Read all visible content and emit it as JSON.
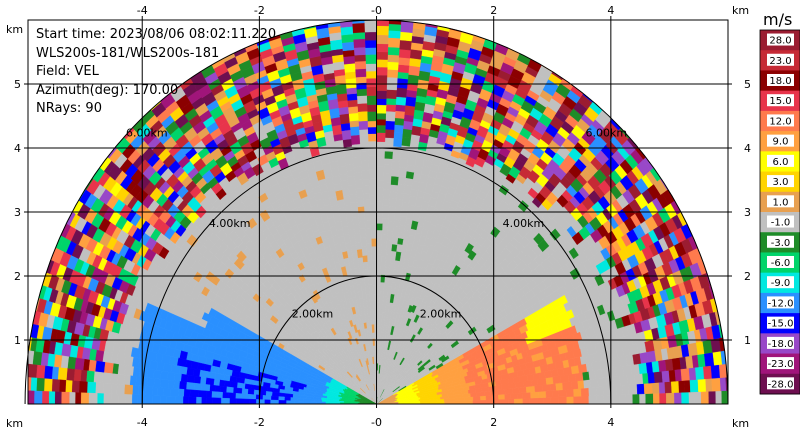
{
  "info": {
    "start_time": "Start time: 2023/08/06 08:02:11.220",
    "site": "WLS200s-181/WLS200s-181",
    "field": "Field: VEL",
    "azimuth": "Azimuth(deg): 170.00",
    "nrays": "NRays: 90"
  },
  "axes": {
    "x_ticks": [
      "-4",
      "-2",
      "-0",
      "2",
      "4"
    ],
    "x_tick_values": [
      -4,
      -2,
      0,
      2,
      4
    ],
    "y_ticks": [
      "1",
      "2",
      "3",
      "4",
      "5"
    ],
    "y_tick_values": [
      1,
      2,
      3,
      4,
      5
    ],
    "unit_label": "km",
    "xlim": [
      -5.95,
      6.0
    ],
    "ylim": [
      0,
      6.0
    ]
  },
  "rings": [
    {
      "range_km": 2,
      "label": "2.00km"
    },
    {
      "range_km": 4,
      "label": "4.00km"
    },
    {
      "range_km": 6,
      "label": "6.00km"
    }
  ],
  "colorbar": {
    "unit": "m/s",
    "labels": [
      "28.0",
      "23.0",
      "18.0",
      "15.0",
      "12.0",
      "9.0",
      "6.0",
      "3.0",
      "1.0",
      "-1.0",
      "-3.0",
      "-6.0",
      "-9.0",
      "-12.0",
      "-15.0",
      "-18.0",
      "-23.0",
      "-28.0"
    ],
    "colors": [
      "#9b1c31",
      "#c62a35",
      "#8b0000",
      "#e8344b",
      "#ff7a4d",
      "#ffa040",
      "#ffff00",
      "#ffd400",
      "#e8a050",
      "#c0c0c0",
      "#1e8c28",
      "#00d46a",
      "#00e8e0",
      "#2a90ff",
      "#0000ff",
      "#9848c8",
      "#a0157a",
      "#6e0f50"
    ]
  }
}
